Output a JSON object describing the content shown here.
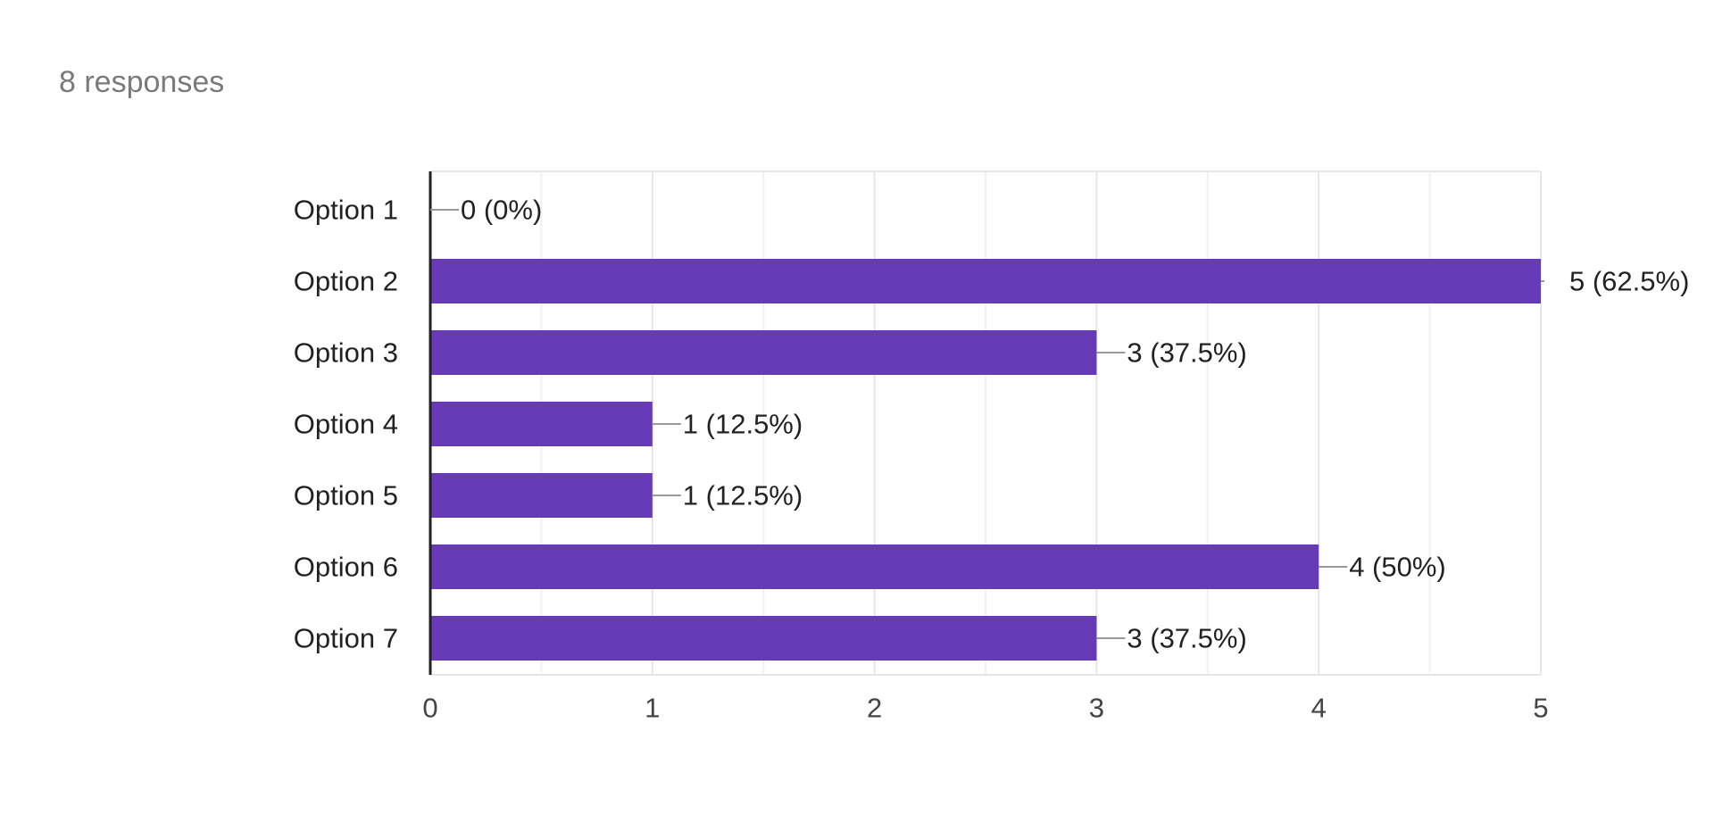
{
  "header": {
    "responses_label": "8 responses"
  },
  "colors": {
    "bar": "#673ab7",
    "grid_major": "#e6e6e6",
    "grid_minor": "#f1f1f1",
    "axis": "#222222",
    "leader_line": "#999999",
    "text": "#222222",
    "tick_text": "#444444"
  },
  "chart_data": {
    "type": "bar",
    "orientation": "horizontal",
    "categories": [
      "Option 1",
      "Option 2",
      "Option 3",
      "Option 4",
      "Option 5",
      "Option 6",
      "Option 7"
    ],
    "values": [
      0,
      5,
      3,
      1,
      1,
      4,
      3
    ],
    "data_labels": [
      "0 (0%)",
      "5 (62.5%)",
      "3 (37.5%)",
      "1 (12.5%)",
      "1 (12.5%)",
      "4 (50%)",
      "3 (37.5%)"
    ],
    "title": "",
    "xlabel": "",
    "ylabel": "",
    "xlim": [
      0,
      5
    ],
    "x_ticks": [
      0,
      1,
      2,
      3,
      4,
      5
    ],
    "grid": true,
    "legend": "none"
  }
}
